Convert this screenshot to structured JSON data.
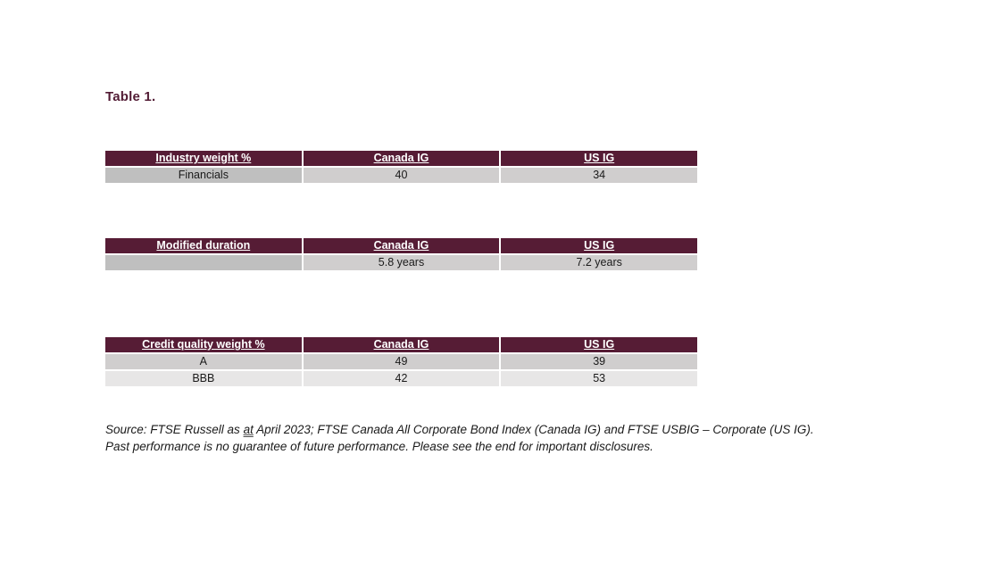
{
  "page": {
    "title": "Table 1."
  },
  "colors": {
    "header-bg": "#561c35",
    "title-color": "#521b34",
    "row-dark": "#bfbfbf",
    "row-medium": "#d0cece",
    "row-light": "#e7e6e6"
  },
  "tables": [
    {
      "name": "industry-weight-table",
      "headers": [
        "Industry weight %",
        "Canada IG",
        "US IG"
      ],
      "rows": [
        {
          "cells": [
            "Financials",
            "40",
            "34"
          ],
          "shades": [
            "dark",
            "medium",
            "medium"
          ]
        }
      ]
    },
    {
      "name": "modified-duration-table",
      "headers": [
        "Modified duration",
        "Canada IG",
        "US IG"
      ],
      "rows": [
        {
          "cells": [
            "",
            "5.8 years",
            "7.2 years"
          ],
          "shades": [
            "dark",
            "medium",
            "medium"
          ]
        }
      ]
    },
    {
      "name": "credit-quality-table",
      "headers": [
        "Credit quality weight %",
        "Canada IG",
        "US IG"
      ],
      "rows": [
        {
          "cells": [
            "A",
            "49",
            "39"
          ],
          "shades": [
            "medium",
            "medium",
            "medium"
          ]
        },
        {
          "cells": [
            "BBB",
            "42",
            "53"
          ],
          "shades": [
            "light",
            "light",
            "light"
          ]
        }
      ]
    }
  ],
  "footnote": {
    "line1_pre": "Source: FTSE Russell as ",
    "line1_underlined": "at",
    "line1_post": " April 2023; FTSE Canada All Corporate Bond Index (Canada IG) and FTSE USBIG – Corporate (US IG).",
    "line2": "Past performance is no guarantee of future performance. Please see the end for important disclosures."
  }
}
